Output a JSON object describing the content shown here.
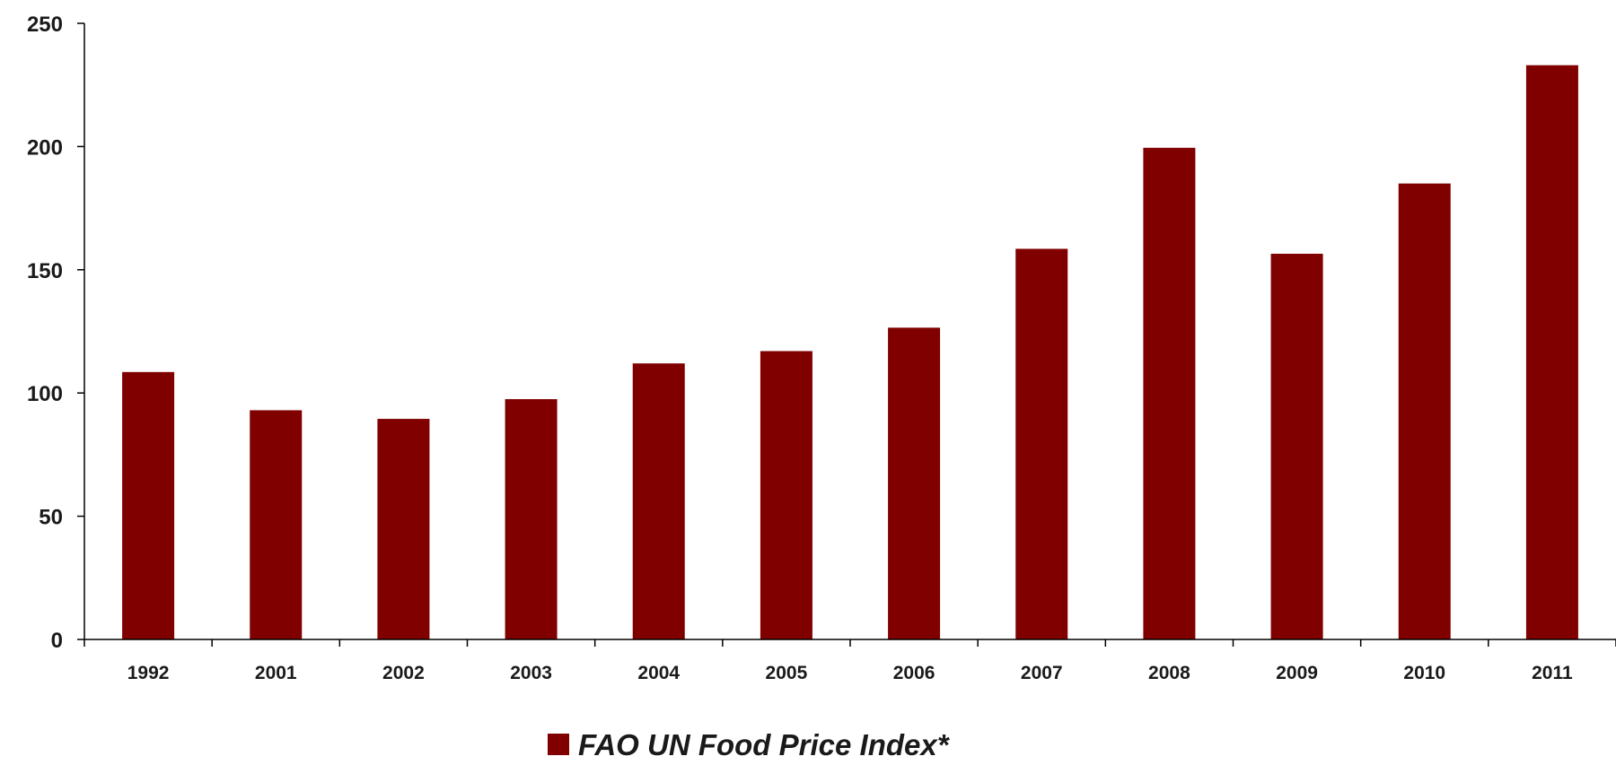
{
  "chart_data": {
    "type": "bar",
    "categories": [
      "1992",
      "2001",
      "2002",
      "2003",
      "2004",
      "2005",
      "2006",
      "2007",
      "2008",
      "2009",
      "2010",
      "2011"
    ],
    "series": [
      {
        "name": "FAO UN Food Price Index*",
        "values": [
          108.5,
          93,
          89.5,
          97.5,
          112,
          117,
          126.5,
          158.5,
          199.5,
          156.5,
          185,
          233
        ],
        "color": "#800000"
      }
    ],
    "ylim": [
      0,
      250
    ],
    "yticks": [
      0,
      50,
      100,
      150,
      200,
      250
    ],
    "grid": false,
    "legend_position": "bottom-center"
  }
}
